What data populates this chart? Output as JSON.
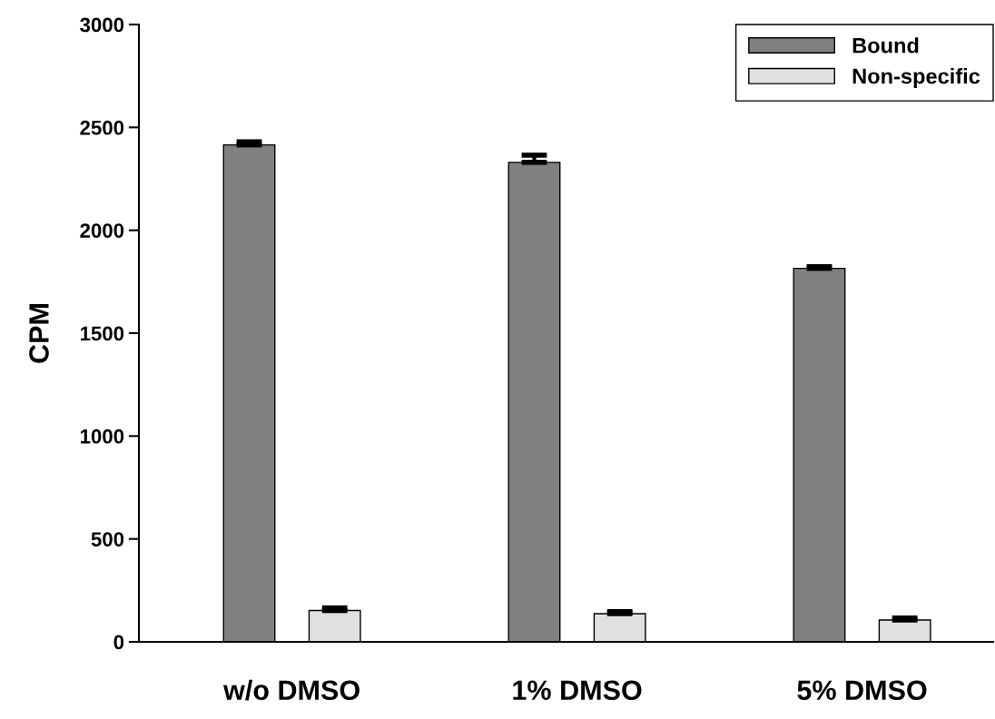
{
  "chart_data": {
    "type": "bar",
    "ylabel": "CPM",
    "categories": [
      "w/o DMSO",
      "1% DMSO",
      "5% DMSO"
    ],
    "series": [
      {
        "name": "Bound",
        "color": "#808080",
        "values": [
          2415,
          2330,
          1815
        ],
        "errors": [
          15,
          35,
          8
        ]
      },
      {
        "name": "Non-specific",
        "color": "#e0e0e0",
        "values": [
          152,
          137,
          106
        ],
        "errors": [
          13,
          10,
          10
        ]
      }
    ],
    "ylim": [
      0,
      3000
    ],
    "yticks": [
      0,
      500,
      1000,
      1500,
      2000,
      2500,
      3000
    ],
    "grid": false,
    "legend": "top right"
  }
}
